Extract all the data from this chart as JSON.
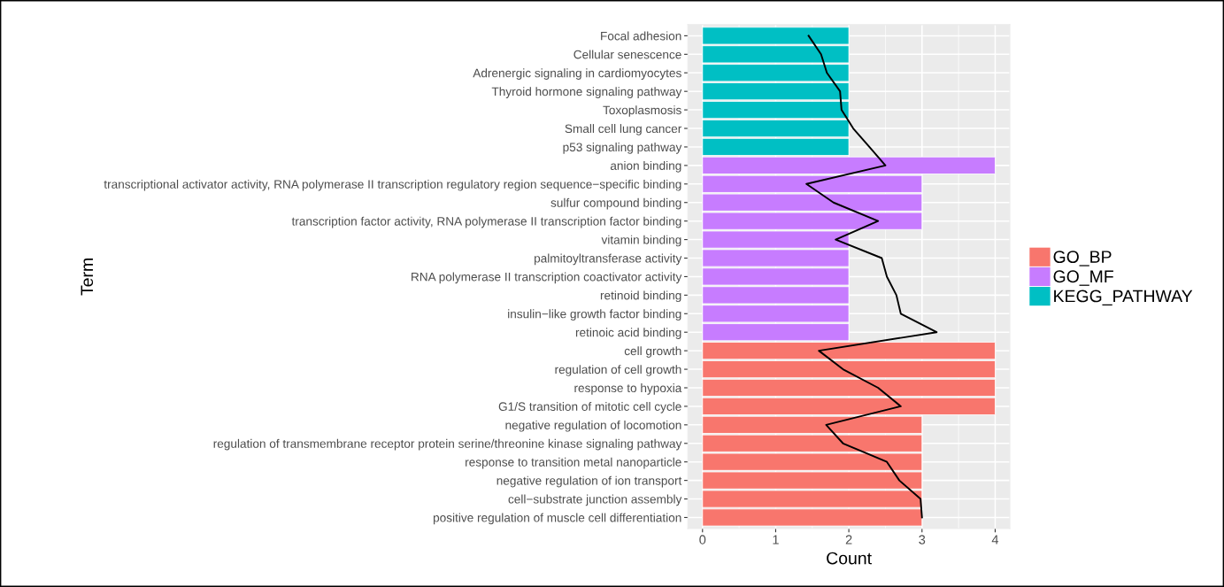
{
  "chart_data": {
    "type": "bar",
    "orientation": "horizontal",
    "stacked": true,
    "xlabel": "Count",
    "ylabel": "Term",
    "categories": [
      "Focal adhesion",
      "Cellular senescence",
      "Adrenergic signaling in cardiomyocytes",
      "Thyroid hormone signaling pathway",
      "Toxoplasmosis",
      "Small cell lung cancer",
      "p53 signaling pathway",
      "anion binding",
      "transcriptional activator activity, RNA polymerase II transcription regulatory region sequence−specific binding",
      "sulfur compound binding",
      "transcription factor activity, RNA polymerase II transcription factor binding",
      "vitamin binding",
      "palmitoyltransferase activity",
      "RNA polymerase II transcription coactivator activity",
      "retinoid binding",
      "insulin−like growth factor binding",
      "retinoic acid binding",
      "cell growth",
      "regulation of cell growth",
      "response to hypoxia",
      "G1/S transition of mitotic cell cycle",
      "negative regulation of locomotion",
      "regulation of transmembrane receptor protein serine/threonine kinase signaling pathway",
      "response to transition metal nanoparticle",
      "negative regulation of ion transport",
      "cell−substrate junction assembly",
      "positive regulation of muscle cell differentiation"
    ],
    "series": [
      {
        "name": "GO_BP",
        "color": "#f8766d",
        "values": [
          null,
          null,
          null,
          null,
          null,
          null,
          null,
          null,
          null,
          null,
          null,
          null,
          null,
          null,
          null,
          null,
          null,
          4,
          4,
          4,
          4,
          3,
          3,
          3,
          3,
          3,
          3
        ]
      },
      {
        "name": "GO_MF",
        "color": "#c77cff",
        "values": [
          null,
          null,
          null,
          null,
          null,
          null,
          null,
          4,
          3,
          3,
          3,
          2,
          2,
          2,
          2,
          2,
          2,
          null,
          null,
          null,
          null,
          null,
          null,
          null,
          null,
          null,
          null
        ]
      },
      {
        "name": "KEGG_PATHWAY",
        "color": "#00bfc4",
        "values": [
          2,
          2,
          2,
          2,
          2,
          2,
          2,
          null,
          null,
          null,
          null,
          null,
          null,
          null,
          null,
          null,
          null,
          null,
          null,
          null,
          null,
          null,
          null,
          null,
          null,
          null,
          null
        ]
      },
      {
        "type": "line",
        "color": "#000000",
        "values": [
          1.45,
          1.62,
          1.7,
          1.88,
          1.9,
          2.06,
          2.28,
          2.5,
          1.42,
          1.79,
          2.4,
          1.82,
          2.45,
          2.52,
          2.65,
          2.71,
          3.2,
          1.59,
          1.92,
          2.4,
          2.71,
          1.69,
          1.92,
          2.52,
          2.69,
          2.98,
          3.0
        ]
      }
    ],
    "xlim": [
      -0.2,
      4.2
    ],
    "xticks": [
      0,
      1,
      2,
      3,
      4
    ],
    "grid": true,
    "legend": "right",
    "marker": "none",
    "line_style": "solid"
  }
}
